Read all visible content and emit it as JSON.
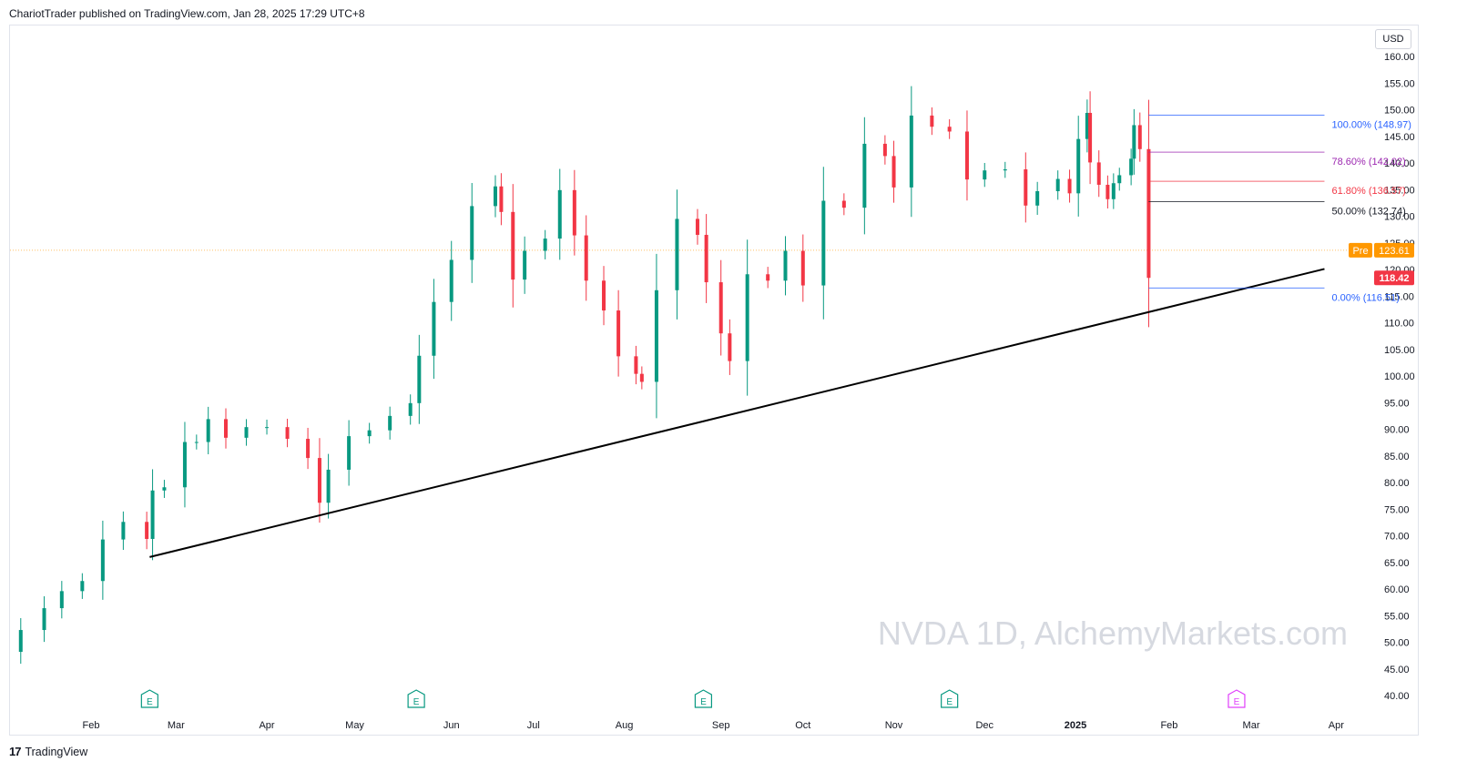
{
  "header": {
    "publish_line": "ChariotTrader published on TradingView.com, Jan 28, 2025 17:29 UTC+8"
  },
  "footer": {
    "brand": "TradingView",
    "brand_mark": "17"
  },
  "chart_data": {
    "type": "candlestick",
    "symbol_watermark": "NVDA 1D, AlchemyMarkets.com",
    "currency": "USD",
    "ylim": [
      40,
      160
    ],
    "y_ticks": [
      "160.00",
      "155.00",
      "150.00",
      "145.00",
      "140.00",
      "135.00",
      "130.00",
      "125.00",
      "120.00",
      "115.00",
      "110.00",
      "105.00",
      "100.00",
      "95.00",
      "90.00",
      "85.00",
      "80.00",
      "75.00",
      "70.00",
      "65.00",
      "60.00",
      "55.00",
      "50.00",
      "45.00",
      "40.00"
    ],
    "x_ticks": [
      {
        "label": "Feb",
        "date": "2024-02-01"
      },
      {
        "label": "Mar",
        "date": "2024-03-01"
      },
      {
        "label": "Apr",
        "date": "2024-04-01"
      },
      {
        "label": "May",
        "date": "2024-05-01"
      },
      {
        "label": "Jun",
        "date": "2024-06-03"
      },
      {
        "label": "Jul",
        "date": "2024-07-01"
      },
      {
        "label": "Aug",
        "date": "2024-08-01"
      },
      {
        "label": "Sep",
        "date": "2024-09-03"
      },
      {
        "label": "Oct",
        "date": "2024-10-01"
      },
      {
        "label": "Nov",
        "date": "2024-11-01"
      },
      {
        "label": "Dec",
        "date": "2024-12-02"
      },
      {
        "label": "2025",
        "date": "2025-01-02",
        "bold": true
      },
      {
        "label": "Feb",
        "date": "2025-02-03"
      },
      {
        "label": "Mar",
        "date": "2025-03-03"
      },
      {
        "label": "Apr",
        "date": "2025-04-01"
      }
    ],
    "close_series": [
      [
        "2024-01-02",
        48.2
      ],
      [
        "2024-01-08",
        52.3
      ],
      [
        "2024-01-16",
        56.4
      ],
      [
        "2024-01-22",
        59.6
      ],
      [
        "2024-01-29",
        61.5
      ],
      [
        "2024-02-05",
        69.3
      ],
      [
        "2024-02-12",
        72.6
      ],
      [
        "2024-02-20",
        69.4
      ],
      [
        "2024-02-22",
        78.5
      ],
      [
        "2024-02-26",
        79.1
      ],
      [
        "2024-03-04",
        87.6
      ],
      [
        "2024-03-08",
        87.6
      ],
      [
        "2024-03-12",
        91.9
      ],
      [
        "2024-03-18",
        88.4
      ],
      [
        "2024-03-25",
        90.4
      ],
      [
        "2024-04-01",
        90.4
      ],
      [
        "2024-04-08",
        88.2
      ],
      [
        "2024-04-15",
        84.6
      ],
      [
        "2024-04-19",
        76.2
      ],
      [
        "2024-04-22",
        82.4
      ],
      [
        "2024-04-29",
        88.7
      ],
      [
        "2024-05-06",
        89.8
      ],
      [
        "2024-05-13",
        92.5
      ],
      [
        "2024-05-20",
        94.9
      ],
      [
        "2024-05-23",
        103.8
      ],
      [
        "2024-05-28",
        113.9
      ],
      [
        "2024-06-03",
        121.8
      ],
      [
        "2024-06-10",
        131.9
      ],
      [
        "2024-06-18",
        135.6
      ],
      [
        "2024-06-20",
        130.8
      ],
      [
        "2024-06-24",
        118.1
      ],
      [
        "2024-06-28",
        123.5
      ],
      [
        "2024-07-05",
        125.8
      ],
      [
        "2024-07-10",
        134.9
      ],
      [
        "2024-07-15",
        126.4
      ],
      [
        "2024-07-19",
        117.9
      ],
      [
        "2024-07-25",
        112.3
      ],
      [
        "2024-07-30",
        103.7
      ],
      [
        "2024-08-05",
        100.4
      ],
      [
        "2024-08-07",
        98.9
      ],
      [
        "2024-08-12",
        116.1
      ],
      [
        "2024-08-19",
        129.5
      ],
      [
        "2024-08-26",
        126.5
      ],
      [
        "2024-08-29",
        117.6
      ],
      [
        "2024-09-03",
        108.0
      ],
      [
        "2024-09-06",
        102.8
      ],
      [
        "2024-09-12",
        119.1
      ],
      [
        "2024-09-19",
        117.9
      ],
      [
        "2024-09-25",
        123.5
      ],
      [
        "2024-10-01",
        117.0
      ],
      [
        "2024-10-08",
        132.9
      ],
      [
        "2024-10-15",
        131.6
      ],
      [
        "2024-10-22",
        143.6
      ],
      [
        "2024-10-29",
        141.3
      ],
      [
        "2024-11-01",
        135.4
      ],
      [
        "2024-11-07",
        148.9
      ],
      [
        "2024-11-14",
        146.8
      ],
      [
        "2024-11-20",
        145.9
      ],
      [
        "2024-11-26",
        136.9
      ],
      [
        "2024-12-02",
        138.6
      ],
      [
        "2024-12-09",
        138.8
      ],
      [
        "2024-12-16",
        132.0
      ],
      [
        "2024-12-20",
        134.7
      ],
      [
        "2024-12-27",
        137.0
      ],
      [
        "2024-12-31",
        134.3
      ],
      [
        "2025-01-03",
        144.5
      ],
      [
        "2025-01-06",
        149.4
      ],
      [
        "2025-01-07",
        140.1
      ],
      [
        "2025-01-10",
        135.9
      ],
      [
        "2025-01-13",
        133.2
      ],
      [
        "2025-01-15",
        136.2
      ],
      [
        "2025-01-17",
        137.7
      ],
      [
        "2025-01-21",
        140.8
      ],
      [
        "2025-01-22",
        147.1
      ],
      [
        "2025-01-24",
        142.6
      ],
      [
        "2025-01-27",
        118.42
      ]
    ],
    "last_price": {
      "label": "118.42",
      "color": "#f23645"
    },
    "premarket": {
      "label": "Pre",
      "value_label": "123.61",
      "value": 123.61,
      "color": "#ff9800"
    },
    "fib_levels": [
      {
        "label": "100.00% (148.97)",
        "value": 148.97,
        "color": "#2962ff"
      },
      {
        "label": "78.60% (142.02)",
        "value": 142.02,
        "color": "#9c27b0"
      },
      {
        "label": "61.80% (136.57)",
        "value": 136.57,
        "color": "#f23645"
      },
      {
        "label": "50.00% (132.74)",
        "value": 132.74,
        "color": "#131722"
      },
      {
        "label": "0.00% (116.51)",
        "value": 116.51,
        "color": "#2962ff"
      }
    ],
    "fib_range_dates": [
      "2025-01-27",
      "2025-03-28"
    ],
    "trendline": {
      "from": [
        "2024-02-21",
        66.0
      ],
      "to": [
        "2025-03-28",
        120.1
      ],
      "color": "#000000"
    },
    "earnings_markers": [
      {
        "date": "2024-02-21",
        "label": "E",
        "color": "#089981"
      },
      {
        "date": "2024-05-22",
        "label": "E",
        "color": "#089981"
      },
      {
        "date": "2024-08-28",
        "label": "E",
        "color": "#089981"
      },
      {
        "date": "2024-11-20",
        "label": "E",
        "color": "#089981"
      },
      {
        "date": "2025-02-26",
        "label": "E",
        "color": "#e040fb"
      }
    ],
    "up_color": "#089981",
    "down_color": "#f23645"
  }
}
